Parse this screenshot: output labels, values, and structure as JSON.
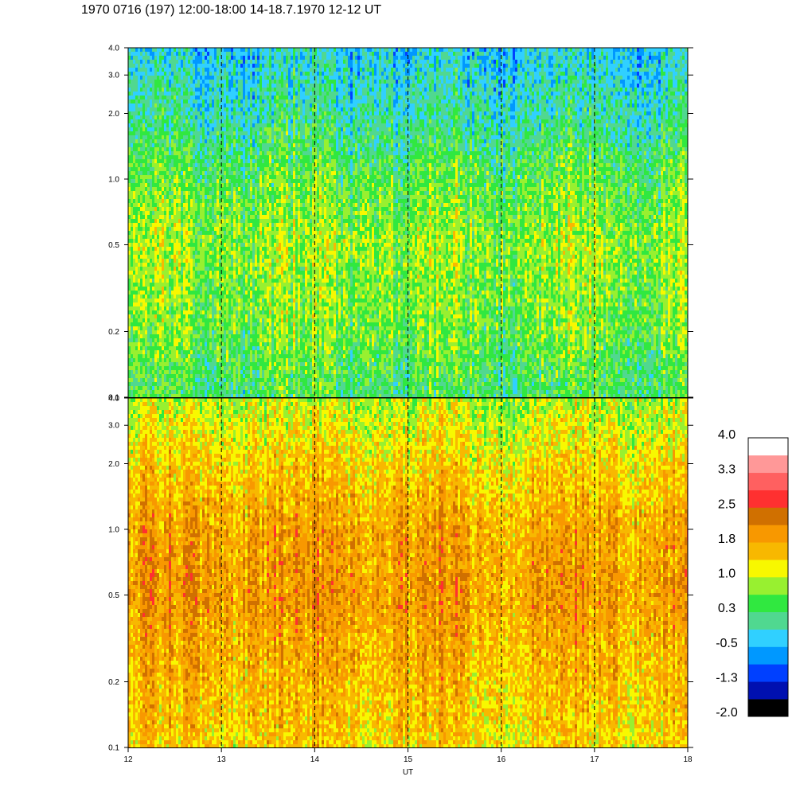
{
  "title": "1970 0716 (197) 12:00-18:00 14-18.7.1970  12-12 UT",
  "chart_data": [
    {
      "type": "heatmap",
      "panel": "upper",
      "x_range": [
        12,
        18
      ],
      "y_range": [
        0.1,
        4.0
      ],
      "y_scale": "log",
      "y_ticks": [
        "0.1",
        "0.2",
        "0.5",
        "1.0",
        "2.0",
        "3.0",
        "4.0"
      ],
      "x_ticks": [
        "12",
        "13",
        "14",
        "15",
        "16",
        "17",
        "18"
      ],
      "dashed_hour_lines": [
        13,
        14,
        15,
        16,
        17
      ],
      "dominant_levels_by_frequency": [
        {
          "y": 0.1,
          "level": 0.3
        },
        {
          "y": 0.2,
          "level": 0.6
        },
        {
          "y": 0.5,
          "level": 0.8
        },
        {
          "y": 1.0,
          "level": 0.5
        },
        {
          "y": 2.0,
          "level": 0.0
        },
        {
          "y": 4.0,
          "level": -0.3
        }
      ]
    },
    {
      "type": "heatmap",
      "panel": "lower",
      "x_range": [
        12,
        18
      ],
      "y_range": [
        0.1,
        4.0
      ],
      "y_scale": "log",
      "y_ticks": [
        "0.1",
        "0.2",
        "0.5",
        "1.0",
        "2.0",
        "3.0",
        "4.0"
      ],
      "x_ticks": [
        "12",
        "13",
        "14",
        "15",
        "16",
        "17",
        "18"
      ],
      "xlabel": "UT",
      "dashed_hour_lines": [
        13,
        14,
        15,
        16,
        17
      ],
      "dominant_levels_by_frequency": [
        {
          "y": 0.1,
          "level": 1.4
        },
        {
          "y": 0.2,
          "level": 1.6
        },
        {
          "y": 0.5,
          "level": 1.9
        },
        {
          "y": 1.0,
          "level": 1.8
        },
        {
          "y": 2.0,
          "level": 1.4
        },
        {
          "y": 4.0,
          "level": 0.9
        }
      ]
    }
  ],
  "colorbar": {
    "labels": [
      "4.0",
      "3.3",
      "2.5",
      "1.8",
      "1.0",
      "0.3",
      "-0.5",
      "-1.3",
      "-2.0"
    ],
    "colors": [
      "#000000",
      "#0010b0",
      "#0040ff",
      "#0098ff",
      "#30d0ff",
      "#50d890",
      "#30e840",
      "#98f030",
      "#f8f800",
      "#f8b800",
      "#f89800",
      "#d07000",
      "#ff3030",
      "#ff6060",
      "#ff9898",
      "#ffffff"
    ]
  }
}
